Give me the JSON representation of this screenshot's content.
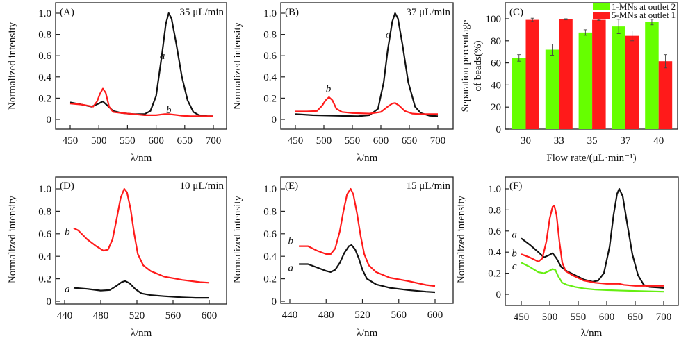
{
  "colors": {
    "black": "#111111",
    "red": "#ff1a1a",
    "green": "#66ee11",
    "bar_green": "#66ff00",
    "bar_red": "#ff1a1a"
  },
  "chart_data": [
    {
      "id": "A",
      "type": "line",
      "panel_label": "(A)",
      "annotation": "35 μL/min",
      "xlabel": "λ/nm",
      "ylabel": "Normalized intensity",
      "xlim": [
        450,
        700
      ],
      "ylim": [
        -0.08,
        1.1
      ],
      "xticks": [
        450,
        500,
        550,
        600,
        650,
        700
      ],
      "yticks": [
        0,
        0.2,
        0.4,
        0.6,
        0.8,
        1.0
      ],
      "ytick_labels": [
        "0",
        "0.2",
        "0.4",
        "0.6",
        "0.8",
        "1.0"
      ],
      "series": [
        {
          "name": "a",
          "color": "black",
          "x": [
            450,
            470,
            487,
            500,
            507,
            515,
            525,
            540,
            560,
            580,
            590,
            600,
            610,
            617,
            622,
            627,
            635,
            645,
            655,
            665,
            675,
            690,
            700
          ],
          "y": [
            0.16,
            0.14,
            0.12,
            0.15,
            0.17,
            0.13,
            0.08,
            0.06,
            0.05,
            0.05,
            0.08,
            0.22,
            0.6,
            0.9,
            1.0,
            0.95,
            0.72,
            0.4,
            0.18,
            0.07,
            0.04,
            0.03,
            0.03
          ],
          "label_at": [
            611,
            0.6
          ]
        },
        {
          "name": "b",
          "color": "red",
          "x": [
            450,
            470,
            490,
            497,
            502,
            507,
            512,
            518,
            525,
            540,
            560,
            580,
            600,
            615,
            622,
            630,
            645,
            660,
            680,
            700
          ],
          "y": [
            0.15,
            0.14,
            0.12,
            0.17,
            0.24,
            0.29,
            0.25,
            0.12,
            0.07,
            0.06,
            0.05,
            0.04,
            0.04,
            0.05,
            0.05,
            0.045,
            0.035,
            0.03,
            0.03,
            0.03
          ],
          "label_at": [
            622,
            0.09
          ]
        }
      ]
    },
    {
      "id": "B",
      "type": "line",
      "panel_label": "(B)",
      "annotation": "37 μL/min",
      "xlabel": "λ/nm",
      "ylabel": "Normalized intensity",
      "xlim": [
        450,
        700
      ],
      "ylim": [
        -0.08,
        1.1
      ],
      "xticks": [
        450,
        500,
        550,
        600,
        650,
        700
      ],
      "yticks": [
        0,
        0.2,
        0.4,
        0.6,
        0.8,
        1.0
      ],
      "ytick_labels": [
        "0",
        "0.2",
        "0.4",
        "0.6",
        "0.8",
        "1.0"
      ],
      "series": [
        {
          "name": "a",
          "color": "black",
          "x": [
            450,
            480,
            520,
            560,
            580,
            595,
            605,
            612,
            620,
            625,
            630,
            638,
            648,
            660,
            670,
            685,
            700
          ],
          "y": [
            0.05,
            0.04,
            0.035,
            0.03,
            0.04,
            0.1,
            0.35,
            0.65,
            0.92,
            1.0,
            0.95,
            0.7,
            0.35,
            0.12,
            0.06,
            0.035,
            0.03
          ],
          "label_at": [
            613,
            0.8
          ]
        },
        {
          "name": "b",
          "color": "red",
          "x": [
            450,
            470,
            488,
            497,
            503,
            509,
            515,
            522,
            532,
            550,
            580,
            600,
            612,
            620,
            625,
            632,
            642,
            655,
            670,
            700
          ],
          "y": [
            0.075,
            0.075,
            0.08,
            0.13,
            0.18,
            0.21,
            0.18,
            0.1,
            0.07,
            0.06,
            0.055,
            0.07,
            0.12,
            0.15,
            0.155,
            0.13,
            0.08,
            0.055,
            0.05,
            0.05
          ],
          "label_at": [
            508,
            0.29
          ]
        }
      ]
    },
    {
      "id": "C",
      "type": "bar",
      "panel_label": "(C)",
      "xlabel": "Flow rate/(μL·min⁻¹)",
      "ylabel": "Separation percentage of beads(%)",
      "ylabel_lines": [
        "Separation percentage",
        "of beads(%)"
      ],
      "categories": [
        "30",
        "33",
        "35",
        "37",
        "40"
      ],
      "ylim": [
        0,
        110
      ],
      "yticks": [
        0,
        20,
        40,
        60,
        80,
        100
      ],
      "legend": "top-right",
      "series": [
        {
          "name": "1-MNs at outlet 2",
          "color": "bar_green",
          "values": [
            64.5,
            72,
            87.5,
            93,
            97
          ],
          "errors": [
            3,
            5,
            2.5,
            6.5,
            2.5
          ]
        },
        {
          "name": "5-MNs at outlet 1",
          "color": "bar_red",
          "values": [
            99,
            99.5,
            99,
            84.5,
            61.5
          ],
          "errors": [
            1.5,
            0.5,
            0.5,
            4.5,
            6
          ]
        }
      ]
    },
    {
      "id": "D",
      "type": "line",
      "panel_label": "(D)",
      "annotation": "10 μL/min",
      "xlabel": "λ/nm",
      "ylabel": "Normalized intensity",
      "xlim": [
        435,
        625
      ],
      "ylim": [
        0,
        1.1
      ],
      "xticks": [
        440,
        480,
        520,
        560,
        600
      ],
      "yticks": [
        0,
        0.2,
        0.4,
        0.6,
        0.8,
        1.0
      ],
      "ytick_labels": [
        "0",
        "0.2",
        "0.4",
        "0.6",
        "0.8",
        "1.0"
      ],
      "series": [
        {
          "name": "a",
          "color": "black",
          "x": [
            450,
            465,
            480,
            490,
            498,
            503,
            507,
            512,
            518,
            525,
            535,
            550,
            570,
            585,
            600
          ],
          "y": [
            0.12,
            0.11,
            0.095,
            0.1,
            0.14,
            0.17,
            0.18,
            0.16,
            0.11,
            0.07,
            0.055,
            0.045,
            0.035,
            0.03,
            0.03
          ],
          "label_at": [
            443,
            0.11
          ]
        },
        {
          "name": "b",
          "color": "red",
          "x": [
            450,
            455,
            465,
            475,
            483,
            488,
            493,
            498,
            502,
            506,
            509,
            513,
            517,
            521,
            527,
            535,
            550,
            570,
            590,
            600
          ],
          "y": [
            0.65,
            0.63,
            0.55,
            0.49,
            0.45,
            0.46,
            0.55,
            0.75,
            0.92,
            1.0,
            0.97,
            0.82,
            0.6,
            0.42,
            0.32,
            0.27,
            0.22,
            0.19,
            0.17,
            0.165
          ],
          "label_at": [
            443,
            0.62
          ]
        }
      ]
    },
    {
      "id": "E",
      "type": "line",
      "panel_label": "(E)",
      "annotation": "15 μL/min",
      "xlabel": "λ/nm",
      "ylabel": "Normalized intensity",
      "xlim": [
        430,
        610
      ],
      "ylim": [
        0,
        1.1
      ],
      "xticks": [
        440,
        480,
        520,
        560,
        600
      ],
      "yticks": [
        0,
        0.2,
        0.4,
        0.6,
        0.8,
        1.0
      ],
      "ytick_labels": [
        "0",
        "0.2",
        "0.4",
        "0.6",
        "0.8",
        "1.0"
      ],
      "series": [
        {
          "name": "a",
          "color": "black",
          "x": [
            450,
            460,
            470,
            480,
            485,
            490,
            495,
            500,
            505,
            508,
            512,
            516,
            520,
            525,
            535,
            550,
            570,
            590,
            600
          ],
          "y": [
            0.33,
            0.33,
            0.3,
            0.27,
            0.26,
            0.28,
            0.34,
            0.43,
            0.49,
            0.5,
            0.46,
            0.38,
            0.28,
            0.2,
            0.15,
            0.12,
            0.1,
            0.085,
            0.08
          ],
          "label_at": [
            441,
            0.3
          ]
        },
        {
          "name": "b",
          "color": "red",
          "x": [
            450,
            460,
            470,
            480,
            485,
            490,
            495,
            499,
            503,
            507,
            510,
            514,
            518,
            522,
            527,
            535,
            550,
            570,
            590,
            600
          ],
          "y": [
            0.49,
            0.49,
            0.45,
            0.42,
            0.42,
            0.47,
            0.62,
            0.8,
            0.95,
            1.0,
            0.95,
            0.78,
            0.58,
            0.42,
            0.32,
            0.26,
            0.21,
            0.18,
            0.145,
            0.135
          ],
          "label_at": [
            441,
            0.54
          ]
        }
      ]
    },
    {
      "id": "F",
      "type": "line",
      "panel_label": "(F)",
      "xlabel": "λ/nm",
      "ylabel": "Normalized intensity",
      "xlim": [
        450,
        700
      ],
      "ylim": [
        -0.1,
        1.1
      ],
      "xticks": [
        450,
        500,
        550,
        600,
        650,
        700
      ],
      "yticks": [
        0,
        0.2,
        0.4,
        0.6,
        0.8,
        1.0
      ],
      "ytick_labels": [
        "0",
        "0.2",
        "0.4",
        "0.6",
        "0.8",
        "1.0"
      ],
      "series": [
        {
          "name": "a",
          "color": "black",
          "x": [
            450,
            465,
            480,
            490,
            498,
            505,
            512,
            520,
            530,
            545,
            560,
            575,
            585,
            595,
            605,
            612,
            618,
            622,
            628,
            635,
            645,
            655,
            665,
            675,
            690,
            700
          ],
          "y": [
            0.53,
            0.47,
            0.4,
            0.35,
            0.37,
            0.39,
            0.34,
            0.26,
            0.22,
            0.18,
            0.14,
            0.12,
            0.13,
            0.2,
            0.45,
            0.75,
            0.95,
            1.0,
            0.93,
            0.7,
            0.38,
            0.18,
            0.09,
            0.07,
            0.065,
            0.06
          ],
          "label_at": [
            438,
            0.57
          ]
        },
        {
          "name": "b",
          "color": "red",
          "x": [
            450,
            465,
            480,
            487,
            494,
            500,
            505,
            508,
            512,
            517,
            522,
            528,
            540,
            560,
            580,
            600,
            615,
            622,
            630,
            650,
            680,
            700
          ],
          "y": [
            0.38,
            0.35,
            0.31,
            0.34,
            0.5,
            0.72,
            0.83,
            0.84,
            0.75,
            0.5,
            0.3,
            0.22,
            0.18,
            0.13,
            0.11,
            0.1,
            0.1,
            0.1,
            0.09,
            0.08,
            0.08,
            0.08
          ],
          "label_at": [
            438,
            0.39
          ]
        },
        {
          "name": "c",
          "color": "green",
          "x": [
            450,
            465,
            480,
            490,
            498,
            505,
            510,
            515,
            522,
            530,
            545,
            560,
            580,
            600,
            630,
            660,
            700
          ],
          "y": [
            0.3,
            0.26,
            0.21,
            0.2,
            0.22,
            0.24,
            0.23,
            0.17,
            0.11,
            0.09,
            0.07,
            0.055,
            0.045,
            0.04,
            0.035,
            0.03,
            0.025
          ],
          "label_at": [
            438,
            0.27
          ]
        }
      ]
    }
  ]
}
